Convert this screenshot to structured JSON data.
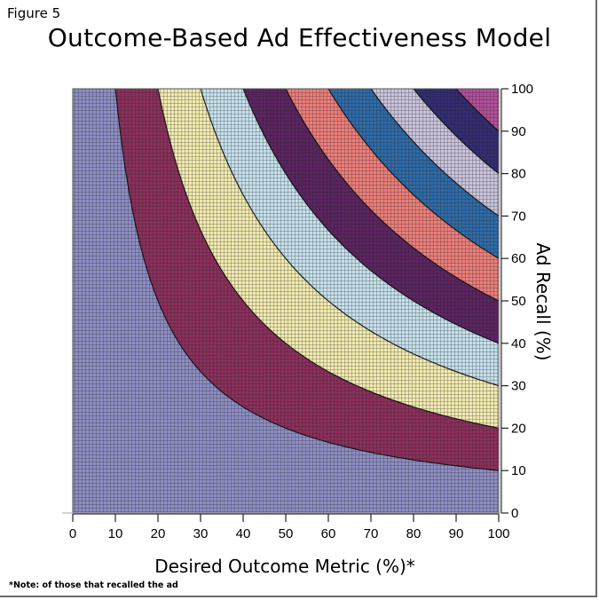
{
  "figure_label": "Figure 5",
  "chart_data": {
    "type": "area",
    "subtype": "filled-contour",
    "title": "Outcome-Based Ad Effectiveness Model",
    "xlabel": "Desired Outcome Metric (%)*",
    "ylabel": "Ad Recall (%)",
    "xlim": [
      0,
      100
    ],
    "ylim": [
      0,
      100
    ],
    "x_ticks": [
      "0",
      "10",
      "20",
      "30",
      "40",
      "50",
      "60",
      "70",
      "80",
      "90",
      "100"
    ],
    "y_ticks": [
      "0",
      "10",
      "20",
      "30",
      "40",
      "50",
      "60",
      "70",
      "80",
      "90",
      "100"
    ],
    "z_formula": "x * y / 100",
    "contour_levels": [
      10,
      20,
      30,
      40,
      50,
      60,
      70,
      80,
      90
    ],
    "bands": [
      {
        "range": [
          0,
          10
        ],
        "color": "#8e8ec4"
      },
      {
        "range": [
          10,
          20
        ],
        "color": "#8c2f5c"
      },
      {
        "range": [
          20,
          30
        ],
        "color": "#f2eab0"
      },
      {
        "range": [
          30,
          40
        ],
        "color": "#c6e0ec"
      },
      {
        "range": [
          40,
          50
        ],
        "color": "#5c2461"
      },
      {
        "range": [
          50,
          60
        ],
        "color": "#ec7e7a"
      },
      {
        "range": [
          60,
          70
        ],
        "color": "#2f6ba8"
      },
      {
        "range": [
          70,
          80
        ],
        "color": "#c9c3dc"
      },
      {
        "range": [
          80,
          90
        ],
        "color": "#322c72"
      },
      {
        "range": [
          90,
          100
        ],
        "color": "#b3509a"
      }
    ],
    "grid": false,
    "legend": "none"
  },
  "footnote": "*Note: of those that recalled the ad"
}
